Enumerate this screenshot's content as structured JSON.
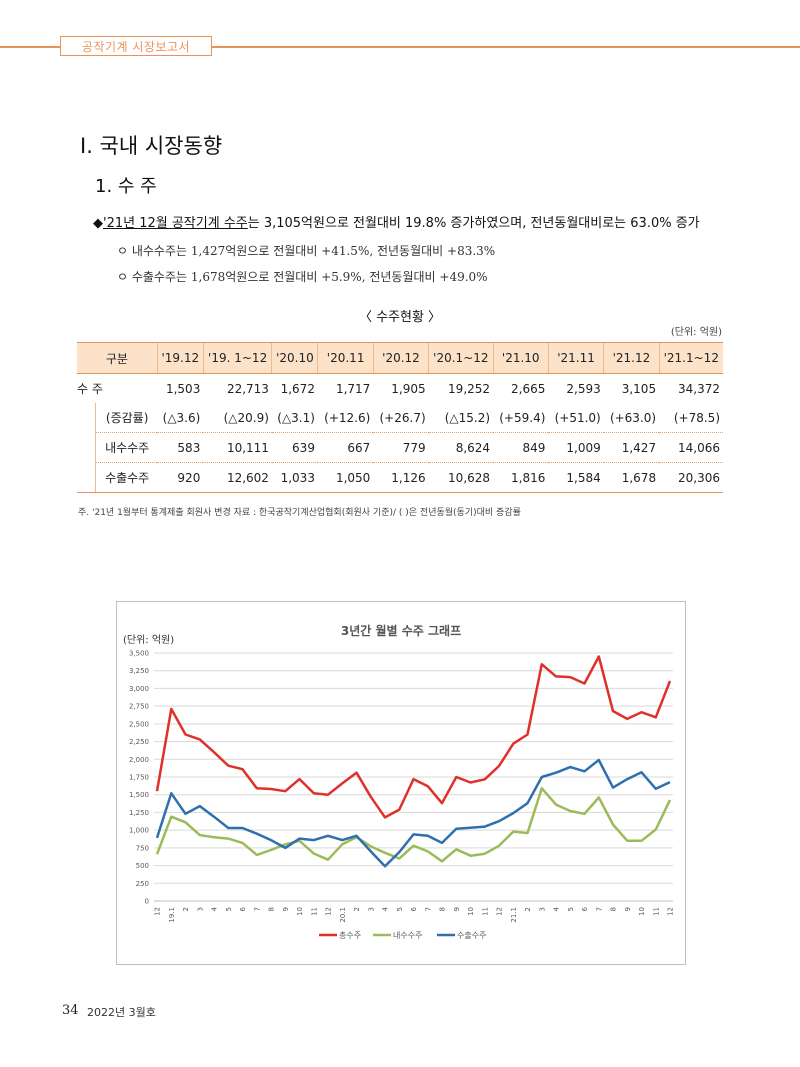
{
  "header": {
    "section_label": "공작기계 시장보고서"
  },
  "heading1": "Ⅰ. 국내 시장동향",
  "heading2": "1. 수 주",
  "bullet": {
    "marker": "◆",
    "underlined": "'21년 12월 공작기계 수주",
    "rest": "는 3,105억원으로 전월대비 19.8% 증가하였으며, 전년동월대비로는 63.0% 증가"
  },
  "subs": [
    "ㅇ 내수수주는 1,427억원으로 전월대비 +41.5%, 전년동월대비 +83.3%",
    "ㅇ 수출수주는 1,678억원으로 전월대비 +5.9%, 전년동월대비 +49.0%"
  ],
  "table": {
    "title": "〈 수주현황 〉",
    "unit": "(단위: 억원)",
    "headers": [
      "구분",
      "'19.12",
      "'19. 1~12",
      "'20.10",
      "'20.11",
      "'20.12",
      "'20.1~12",
      "'21.10",
      "'21.11",
      "'21.12",
      "'21.1~12"
    ],
    "rows": [
      {
        "label": "수  주",
        "values": [
          "1,503",
          "22,713",
          "1,672",
          "1,717",
          "1,905",
          "19,252",
          "2,665",
          "2,593",
          "3,105",
          "34,372"
        ]
      },
      {
        "label": "(증감률)",
        "values": [
          "(△3.6)",
          "(△20.9)",
          "(△3.1)",
          "(+12.6)",
          "(+26.7)",
          "(△15.2)",
          "(+59.4)",
          "(+51.0)",
          "(+63.0)",
          "(+78.5)"
        ]
      },
      {
        "label": "내수수주",
        "values": [
          "583",
          "10,111",
          "639",
          "667",
          "779",
          "8,624",
          "849",
          "1,009",
          "1,427",
          "14,066"
        ]
      },
      {
        "label": "수출수주",
        "values": [
          "920",
          "12,602",
          "1,033",
          "1,050",
          "1,126",
          "10,628",
          "1,816",
          "1,584",
          "1,678",
          "20,306"
        ]
      }
    ]
  },
  "note": "주. '21년 1월부터 통계제출 회원사 변경        자료 : 한국공작기계산업협회(회원사 기준)/ (  )은 전년동월(동기)대비 증감률",
  "chart_data": {
    "type": "line",
    "title": "3년간 월별 수주 그래프",
    "ylabel": "(단위: 억원)",
    "ylim": [
      0,
      3500
    ],
    "yticks": [
      "0",
      "250",
      "500",
      "750",
      "1,000",
      "1,250",
      "1,500",
      "1,750",
      "2,000",
      "2,250",
      "2,500",
      "2,750",
      "3,000",
      "3,250",
      "3,500"
    ],
    "grid": true,
    "legend": "bottom",
    "categories": [
      "12",
      "19.1",
      "2",
      "3",
      "4",
      "5",
      "6",
      "7",
      "8",
      "9",
      "10",
      "11",
      "12",
      "20.1",
      "2",
      "3",
      "4",
      "5",
      "6",
      "7",
      "8",
      "9",
      "10",
      "11",
      "12",
      "21.1",
      "2",
      "3",
      "4",
      "5",
      "6",
      "7",
      "8",
      "9",
      "10",
      "11",
      "12"
    ],
    "series": [
      {
        "name": "총수주",
        "color": "#e0302a",
        "values": [
          1550,
          2710,
          2350,
          2280,
          2100,
          1910,
          1860,
          1590,
          1580,
          1550,
          1720,
          1520,
          1500,
          1660,
          1810,
          1470,
          1180,
          1290,
          1720,
          1620,
          1380,
          1750,
          1672,
          1717,
          1905,
          2220,
          2350,
          3340,
          3170,
          3160,
          3070,
          3450,
          2680,
          2570,
          2665,
          2593,
          3105
        ]
      },
      {
        "name": "내수수주",
        "color": "#9bbb59",
        "values": [
          660,
          1190,
          1110,
          930,
          900,
          880,
          820,
          650,
          720,
          800,
          850,
          670,
          583,
          800,
          900,
          770,
          680,
          600,
          780,
          700,
          560,
          730,
          639,
          667,
          779,
          980,
          960,
          1590,
          1360,
          1270,
          1230,
          1460,
          1080,
          849,
          849,
          1009,
          1427
        ]
      },
      {
        "name": "수출수주",
        "color": "#2f6fad",
        "values": [
          890,
          1520,
          1230,
          1340,
          1190,
          1030,
          1030,
          950,
          860,
          750,
          880,
          860,
          920,
          860,
          920,
          700,
          490,
          690,
          940,
          920,
          820,
          1020,
          1033,
          1050,
          1126,
          1240,
          1380,
          1750,
          1810,
          1890,
          1830,
          1990,
          1600,
          1720,
          1816,
          1584,
          1678
        ]
      }
    ]
  },
  "footer": {
    "page_number": "34",
    "issue": "2022년 3월호"
  }
}
